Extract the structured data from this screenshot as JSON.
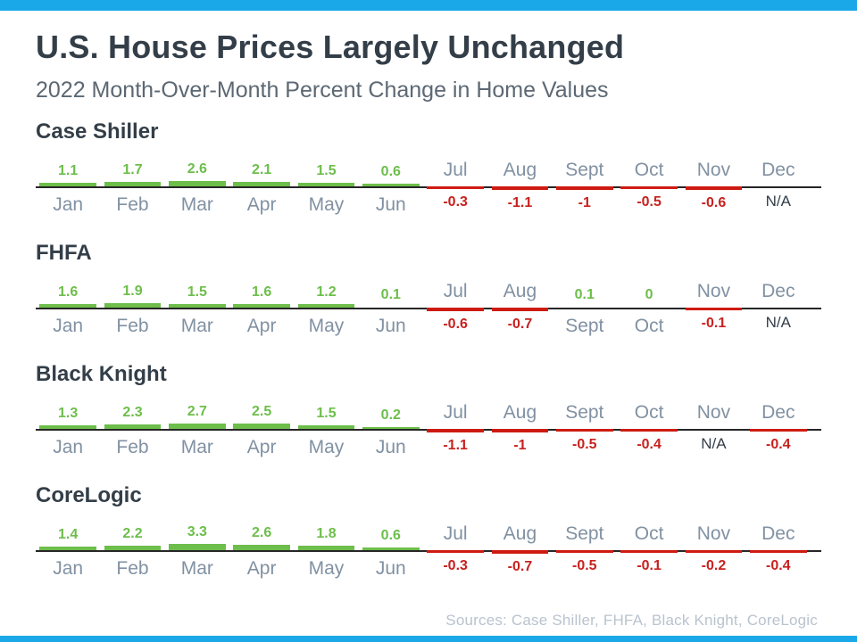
{
  "page": {
    "title": "U.S. House Prices Largely Unchanged",
    "subtitle": "2022 Month-Over-Month Percent Change in Home Values",
    "sources": "Sources: Case Shiller, FHFA, Black Knight, CoreLogic"
  },
  "colors": {
    "accent_bar": "#1BA8E9",
    "title_text": "#333E48",
    "subtitle_text": "#5C6873",
    "month_text": "#8191A2",
    "positive": "#6DBE4B",
    "negative_bar": "#CE1B12",
    "negative_text": "#C7221F",
    "na_text": "#333E48",
    "axis_line": "#262626",
    "sources_text": "#B9C3CE"
  },
  "chart_data": [
    {
      "type": "bar",
      "title": "Case Shiller",
      "categories": [
        "Jan",
        "Feb",
        "Mar",
        "Apr",
        "May",
        "Jun",
        "Jul",
        "Aug",
        "Sept",
        "Oct",
        "Nov",
        "Dec"
      ],
      "values": [
        1.1,
        1.7,
        2.6,
        2.1,
        1.5,
        0.6,
        -0.3,
        -1.1,
        -1,
        -0.5,
        -0.6,
        null
      ],
      "labels": [
        "1.1",
        "1.7",
        "2.6",
        "2.1",
        "1.5",
        "0.6",
        "-0.3",
        "-1.1",
        "-1",
        "-0.5",
        "-0.6",
        "N/A"
      ]
    },
    {
      "type": "bar",
      "title": "FHFA",
      "categories": [
        "Jan",
        "Feb",
        "Mar",
        "Apr",
        "May",
        "Jun",
        "Jul",
        "Aug",
        "Sept",
        "Oct",
        "Nov",
        "Dec"
      ],
      "values": [
        1.6,
        1.9,
        1.5,
        1.6,
        1.2,
        0.1,
        -0.6,
        -0.7,
        0.1,
        0,
        -0.1,
        null
      ],
      "labels": [
        "1.6",
        "1.9",
        "1.5",
        "1.6",
        "1.2",
        "0.1",
        "-0.6",
        "-0.7",
        "0.1",
        "0",
        "-0.1",
        "N/A"
      ]
    },
    {
      "type": "bar",
      "title": "Black Knight",
      "categories": [
        "Jan",
        "Feb",
        "Mar",
        "Apr",
        "May",
        "Jun",
        "Jul",
        "Aug",
        "Sept",
        "Oct",
        "Nov",
        "Dec"
      ],
      "values": [
        1.3,
        2.3,
        2.7,
        2.5,
        1.5,
        0.2,
        -1.1,
        -1,
        -0.5,
        -0.4,
        null,
        -0.4
      ],
      "labels": [
        "1.3",
        "2.3",
        "2.7",
        "2.5",
        "1.5",
        "0.2",
        "-1.1",
        "-1",
        "-0.5",
        "-0.4",
        "N/A",
        "-0.4"
      ]
    },
    {
      "type": "bar",
      "title": "CoreLogic",
      "categories": [
        "Jan",
        "Feb",
        "Mar",
        "Apr",
        "May",
        "Jun",
        "Jul",
        "Aug",
        "Sept",
        "Oct",
        "Nov",
        "Dec"
      ],
      "values": [
        1.4,
        2.2,
        3.3,
        2.6,
        1.8,
        0.6,
        -0.3,
        -0.7,
        -0.5,
        -0.1,
        -0.2,
        -0.4
      ],
      "labels": [
        "1.4",
        "2.2",
        "3.3",
        "2.6",
        "1.8",
        "0.6",
        "-0.3",
        "-0.7",
        "-0.5",
        "-0.1",
        "-0.2",
        "-0.4"
      ]
    }
  ]
}
